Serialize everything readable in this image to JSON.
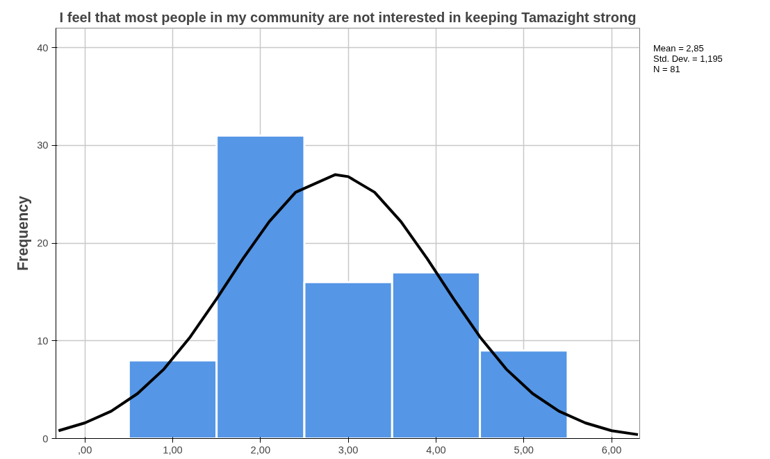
{
  "chart_data": {
    "type": "histogram",
    "title": "I feel that most people in my community are not interested in keeping Tamazight strong",
    "ylabel": "Frequency",
    "series": [
      {
        "bins": [
          0.5,
          1.5,
          2.5,
          3.5,
          4.5,
          5.5
        ],
        "values": [
          8,
          31,
          16,
          17,
          9
        ],
        "color": "#5596e6"
      },
      {
        "type": "line",
        "x": [
          -0.3,
          0,
          0.3,
          0.6,
          0.9,
          1.2,
          1.5,
          1.8,
          2.1,
          2.4,
          2.85,
          3.0,
          3.3,
          3.6,
          3.9,
          4.2,
          4.5,
          4.8,
          5.1,
          5.4,
          5.7,
          6.0,
          6.3
        ],
        "values": [
          0.8,
          1.6,
          2.8,
          4.6,
          7.1,
          10.4,
          14.3,
          18.4,
          22.2,
          25.2,
          27.0,
          26.8,
          25.2,
          22.2,
          18.4,
          14.3,
          10.4,
          7.1,
          4.6,
          2.8,
          1.6,
          0.8,
          0.4
        ],
        "color": "#000000"
      }
    ],
    "annotations": [
      "Mean = 2,85",
      "Std. Dev. = 1,195",
      "N = 81"
    ],
    "xlim": [
      -0.33,
      6.32
    ],
    "ylim": [
      0,
      42
    ],
    "xticks": [
      {
        "value": 0,
        "label": ",00"
      },
      {
        "value": 1,
        "label": "1,00"
      },
      {
        "value": 2,
        "label": "2,00"
      },
      {
        "value": 3,
        "label": "3,00"
      },
      {
        "value": 4,
        "label": "4,00"
      },
      {
        "value": 5,
        "label": "5,00"
      },
      {
        "value": 6,
        "label": "6,00"
      }
    ],
    "yticks": [
      0,
      10,
      20,
      30,
      40
    ],
    "grid": true,
    "line_style": "solid",
    "marker": "none"
  }
}
